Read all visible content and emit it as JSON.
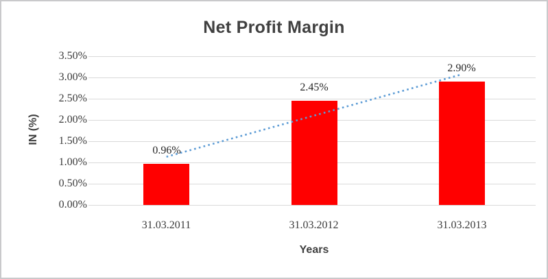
{
  "chart_data": {
    "type": "bar",
    "title": "Net Profit Margin",
    "xlabel": "Years",
    "ylabel": "IN (%)",
    "categories": [
      "31.03.2011",
      "31.03.2012",
      "31.03.2013"
    ],
    "values": [
      0.96,
      2.45,
      2.9
    ],
    "data_labels": [
      "0.96%",
      "2.45%",
      "2.90%"
    ],
    "ylim": [
      0,
      3.5
    ],
    "ytick_labels": [
      "0.00%",
      "0.50%",
      "1.00%",
      "1.50%",
      "2.00%",
      "2.50%",
      "3.00%",
      "3.50%"
    ],
    "grid": true,
    "legend": "none",
    "bar_color": "#ff0000",
    "gridline_color": "#d9d9d9",
    "trendline": {
      "type": "linear",
      "style": "dotted",
      "color": "#5b9bd5"
    }
  }
}
